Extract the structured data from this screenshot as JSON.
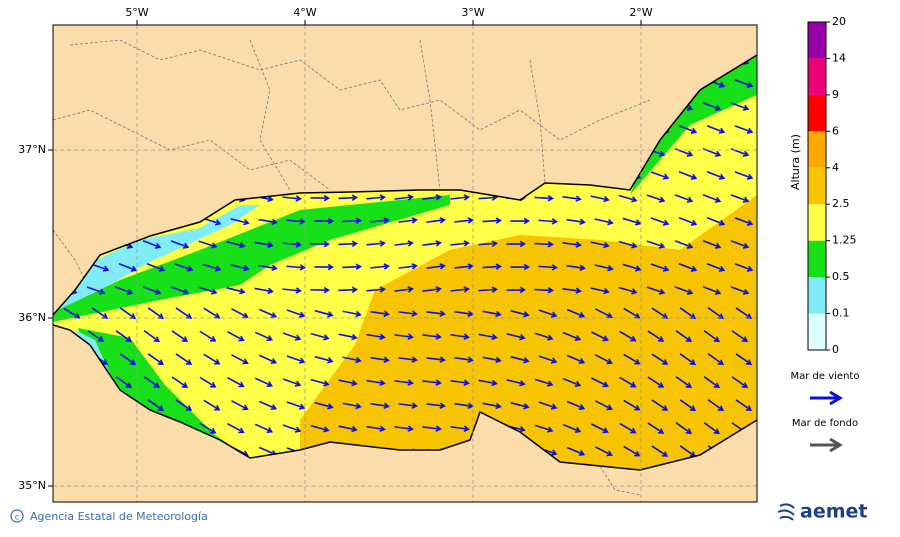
{
  "map": {
    "lon_ticks": [
      {
        "value": -5,
        "label": "5°W"
      },
      {
        "value": -4,
        "label": "4°W"
      },
      {
        "value": -3,
        "label": "3°W"
      },
      {
        "value": -2,
        "label": "2°W"
      }
    ],
    "lat_ticks": [
      {
        "value": 37,
        "label": "37°N"
      },
      {
        "value": 36,
        "label": "36°N"
      },
      {
        "value": 35,
        "label": "35°N"
      }
    ]
  },
  "legend": {
    "title": "Altura (m)",
    "levels": [
      0,
      0.1,
      0.5,
      1.25,
      2.5,
      4,
      6,
      9,
      14,
      20
    ],
    "colors": [
      "#dcffff",
      "#80ecf8",
      "#18e018",
      "#ffff48",
      "#f6c400",
      "#ffa800",
      "#ff0000",
      "#ee0077",
      "#9a00aa"
    ],
    "arrows": [
      {
        "label": "Mar de viento",
        "color": "#1010dd"
      },
      {
        "label": "Mar de fondo",
        "color": "#555555"
      }
    ]
  },
  "footer": {
    "credit": "Agencia Estatal de Meteorología",
    "logo": "aemet"
  }
}
